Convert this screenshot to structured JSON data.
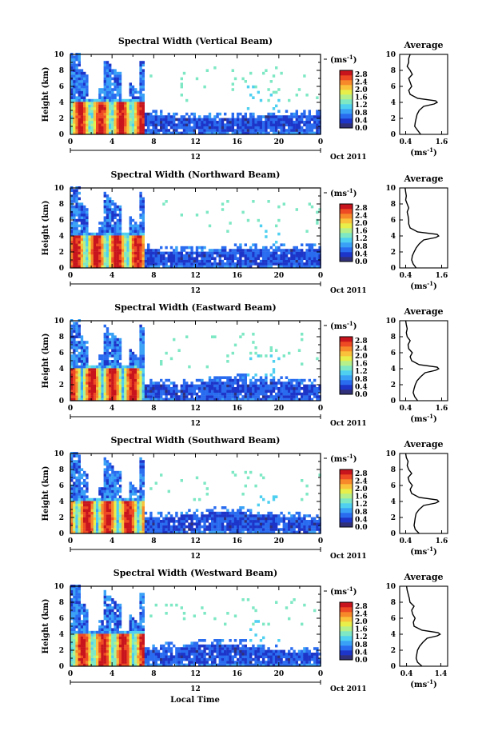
{
  "figure": {
    "xlabel": "Local Time",
    "date_label": "Oct 2011",
    "day_label": "12",
    "colorbar_unit": "(ms",
    "colorbar_unit_exp": "-1",
    "colorbar_unit_close": ")",
    "avg_title": "Average",
    "avg_xlabel": "(ms",
    "avg_xlabel_exp": "-1",
    "avg_xlabel_close": ")",
    "ylabel": "Height (km)"
  },
  "chart_data": [
    {
      "type": "heatmap",
      "title": "Spectral Width (Vertical Beam)",
      "ylabel": "Height (km)",
      "xticks": [
        "0",
        "4",
        "8",
        "12",
        "16",
        "20",
        "0"
      ],
      "yticks": [
        "0",
        "2",
        "4",
        "6",
        "8",
        "10"
      ],
      "xlim": [
        0,
        24
      ],
      "ylim": [
        0,
        10
      ],
      "colorbar_ticks": [
        "0.0",
        "0.4",
        "0.8",
        "1.2",
        "1.6",
        "2.0",
        "2.4",
        "2.8"
      ],
      "colorbar_range": [
        0,
        3.0
      ],
      "average": {
        "xticks": [
          "0.4",
          "1.6"
        ],
        "xlim": [
          0.2,
          1.8
        ],
        "height": [
          0,
          0.5,
          1,
          1.5,
          2,
          2.5,
          3,
          3.5,
          3.8,
          4,
          4.2,
          4.5,
          5,
          5.5,
          6,
          6.5,
          7,
          7.5,
          8,
          8.5,
          9,
          9.5,
          10
        ],
        "width": [
          0.9,
          0.8,
          0.7,
          0.72,
          0.75,
          0.78,
          0.85,
          1.0,
          1.35,
          1.45,
          1.4,
          0.8,
          0.55,
          0.5,
          0.6,
          0.55,
          0.5,
          0.62,
          0.55,
          0.45,
          0.5,
          0.5,
          0.55
        ]
      }
    },
    {
      "type": "heatmap",
      "title": "Spectral Width (Northward Beam)",
      "ylabel": "Height (km)",
      "xticks": [
        "0",
        "4",
        "8",
        "12",
        "16",
        "20",
        "0"
      ],
      "yticks": [
        "0",
        "2",
        "4",
        "6",
        "8",
        "10"
      ],
      "xlim": [
        0,
        24
      ],
      "ylim": [
        0,
        10
      ],
      "colorbar_ticks": [
        "0.0",
        "0.4",
        "0.8",
        "1.2",
        "1.6",
        "2.0",
        "2.4",
        "2.8"
      ],
      "colorbar_range": [
        0,
        3.0
      ],
      "average": {
        "xticks": [
          "0.4",
          "1.6"
        ],
        "xlim": [
          0.2,
          1.8
        ],
        "height": [
          0,
          0.5,
          1,
          1.5,
          2,
          2.5,
          3,
          3.5,
          3.8,
          4,
          4.2,
          4.5,
          5,
          5.5,
          6,
          6.5,
          7,
          7.5,
          8,
          8.5,
          9,
          9.5,
          10
        ],
        "width": [
          0.75,
          0.65,
          0.6,
          0.62,
          0.68,
          0.75,
          0.85,
          1.0,
          1.4,
          1.5,
          1.45,
          0.8,
          0.55,
          0.5,
          0.5,
          0.48,
          0.45,
          0.5,
          0.45,
          0.4,
          0.42,
          0.4,
          0.38
        ]
      }
    },
    {
      "type": "heatmap",
      "title": "Spectral Width (Eastward Beam)",
      "ylabel": "Height (km)",
      "xticks": [
        "0",
        "4",
        "8",
        "12",
        "16",
        "20",
        "0"
      ],
      "yticks": [
        "0",
        "2",
        "4",
        "6",
        "8",
        "10"
      ],
      "xlim": [
        0,
        24
      ],
      "ylim": [
        0,
        10
      ],
      "colorbar_ticks": [
        "0.0",
        "0.4",
        "0.8",
        "1.2",
        "1.6",
        "2.0",
        "2.4",
        "2.8"
      ],
      "colorbar_range": [
        0,
        3.0
      ],
      "average": {
        "xticks": [
          "0.4",
          "1.6"
        ],
        "xlim": [
          0.2,
          1.8
        ],
        "height": [
          0,
          0.5,
          1,
          1.5,
          2,
          2.5,
          3,
          3.5,
          3.8,
          4,
          4.2,
          4.5,
          5,
          5.5,
          6,
          6.5,
          7,
          7.5,
          8,
          8.5,
          9,
          9.5,
          10
        ],
        "width": [
          0.8,
          0.7,
          0.65,
          0.68,
          0.72,
          0.78,
          0.9,
          1.05,
          1.4,
          1.5,
          1.45,
          0.85,
          0.6,
          0.55,
          0.62,
          0.5,
          0.48,
          0.55,
          0.45,
          0.42,
          0.45,
          0.42,
          0.4
        ]
      }
    },
    {
      "type": "heatmap",
      "title": "Spectral Width (Southward Beam)",
      "ylabel": "Height (km)",
      "xticks": [
        "0",
        "4",
        "8",
        "12",
        "16",
        "20",
        "0"
      ],
      "yticks": [
        "0",
        "2",
        "4",
        "6",
        "8",
        "10"
      ],
      "xlim": [
        0,
        24
      ],
      "ylim": [
        0,
        10
      ],
      "colorbar_ticks": [
        "0.0",
        "0.4",
        "0.8",
        "1.2",
        "1.6",
        "2.0",
        "2.4",
        "2.8"
      ],
      "colorbar_range": [
        0,
        3.0
      ],
      "average": {
        "xticks": [
          "0.4",
          "1.6"
        ],
        "xlim": [
          0.2,
          1.8
        ],
        "height": [
          0,
          0.5,
          1,
          1.5,
          2,
          2.5,
          3,
          3.5,
          3.8,
          4,
          4.2,
          4.5,
          5,
          5.5,
          6,
          6.5,
          7,
          7.5,
          8,
          8.5,
          9,
          9.5,
          10
        ],
        "width": [
          0.85,
          0.72,
          0.68,
          0.7,
          0.72,
          0.75,
          0.85,
          1.0,
          1.4,
          1.5,
          1.45,
          0.85,
          0.6,
          0.55,
          0.62,
          0.52,
          0.48,
          0.6,
          0.5,
          0.45,
          0.48,
          0.42,
          0.4
        ]
      }
    },
    {
      "type": "heatmap",
      "title": "Spectral Width (Westward Beam)",
      "ylabel": "Height (km)",
      "xticks": [
        "0",
        "4",
        "8",
        "12",
        "16",
        "20",
        "0"
      ],
      "yticks": [
        "0",
        "2",
        "4",
        "6",
        "8",
        "10"
      ],
      "xlim": [
        0,
        24
      ],
      "ylim": [
        0,
        10
      ],
      "colorbar_ticks": [
        "0.0",
        "0.4",
        "0.8",
        "1.2",
        "1.6",
        "2.0",
        "2.4",
        "2.8"
      ],
      "colorbar_range": [
        0,
        3.0
      ],
      "average": {
        "xticks": [
          "0.4",
          "1.4"
        ],
        "xlim": [
          0.2,
          1.6
        ],
        "height": [
          0,
          0.5,
          1,
          1.5,
          2,
          2.5,
          3,
          3.5,
          3.8,
          4,
          4.2,
          4.5,
          5,
          5.5,
          6,
          6.5,
          7,
          7.5,
          8,
          8.5,
          9,
          9.5,
          10
        ],
        "width": [
          0.85,
          0.72,
          0.68,
          0.7,
          0.72,
          0.78,
          0.88,
          1.0,
          1.3,
          1.38,
          1.32,
          0.85,
          0.62,
          0.6,
          0.65,
          0.58,
          0.55,
          0.62,
          0.5,
          0.48,
          0.45,
          0.42,
          0.4
        ]
      }
    }
  ],
  "colormap": [
    "#30307a",
    "#1d35c8",
    "#2a6cf0",
    "#3aa2f6",
    "#4fd0f0",
    "#7ee8c4",
    "#b6f08a",
    "#e8ee4a",
    "#f9c23a",
    "#f7892a",
    "#ee4a23",
    "#c8141c"
  ]
}
